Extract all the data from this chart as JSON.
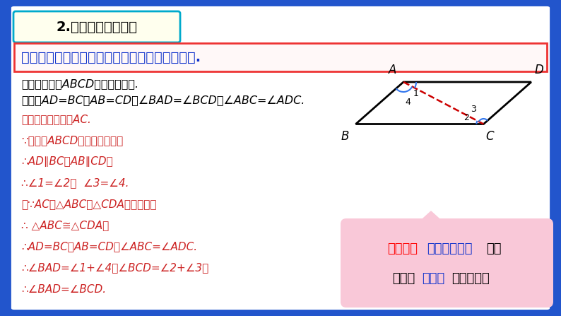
{
  "bg_color": "#2255cc",
  "main_bg": "#ffffff",
  "title_box_bg": "#ffffee",
  "title_box_border": "#00aacc",
  "title_text": "2.平行四边形的性质",
  "theorem_box_border": "#ee3333",
  "theorem_text": "平行四边形的对边相等，平行四边形的对角相等.",
  "theorem_color": "#1133cc",
  "given_line": "已知：四边形ABCD是平行四边形.",
  "prove_line": "求证：AD=BC，AB=CD，∠BAD=∠BCD，∠ABC=∠ADC.",
  "proof_lines": [
    "证明：如图，连接AC.",
    "∵四边形ABCD是平行四边形，",
    "∴AD∥BC，AB∥CD，",
    "∴∠1=∠2，  ∠3=∠4.",
    "又∵AC是△ABC和△CDA的公共边，",
    "∴ △ABC≅△CDA，",
    "∴AD=BC，AB=CD，∠ABC=∠ADC.",
    "∴∠BAD=∠1+∠4，∠BCD=∠2+∠3，",
    "∴∠BAD=∠BCD."
  ],
  "proof_color": "#cc2222",
  "hint_box_bg": "#f9c8d8",
  "hint_red": "作对角线",
  "hint_blue1": "把平行四边形",
  "hint_black1": "问题",
  "hint_black2": "转化为",
  "hint_blue2": "三角形",
  "hint_black3": "问题来解决",
  "pg_A": [
    0.3,
    0.72
  ],
  "pg_B": [
    0.05,
    0.38
  ],
  "pg_C": [
    0.72,
    0.38
  ],
  "pg_D": [
    0.97,
    0.72
  ],
  "diag_color": "#cc0000",
  "arc_color": "#3377ee"
}
